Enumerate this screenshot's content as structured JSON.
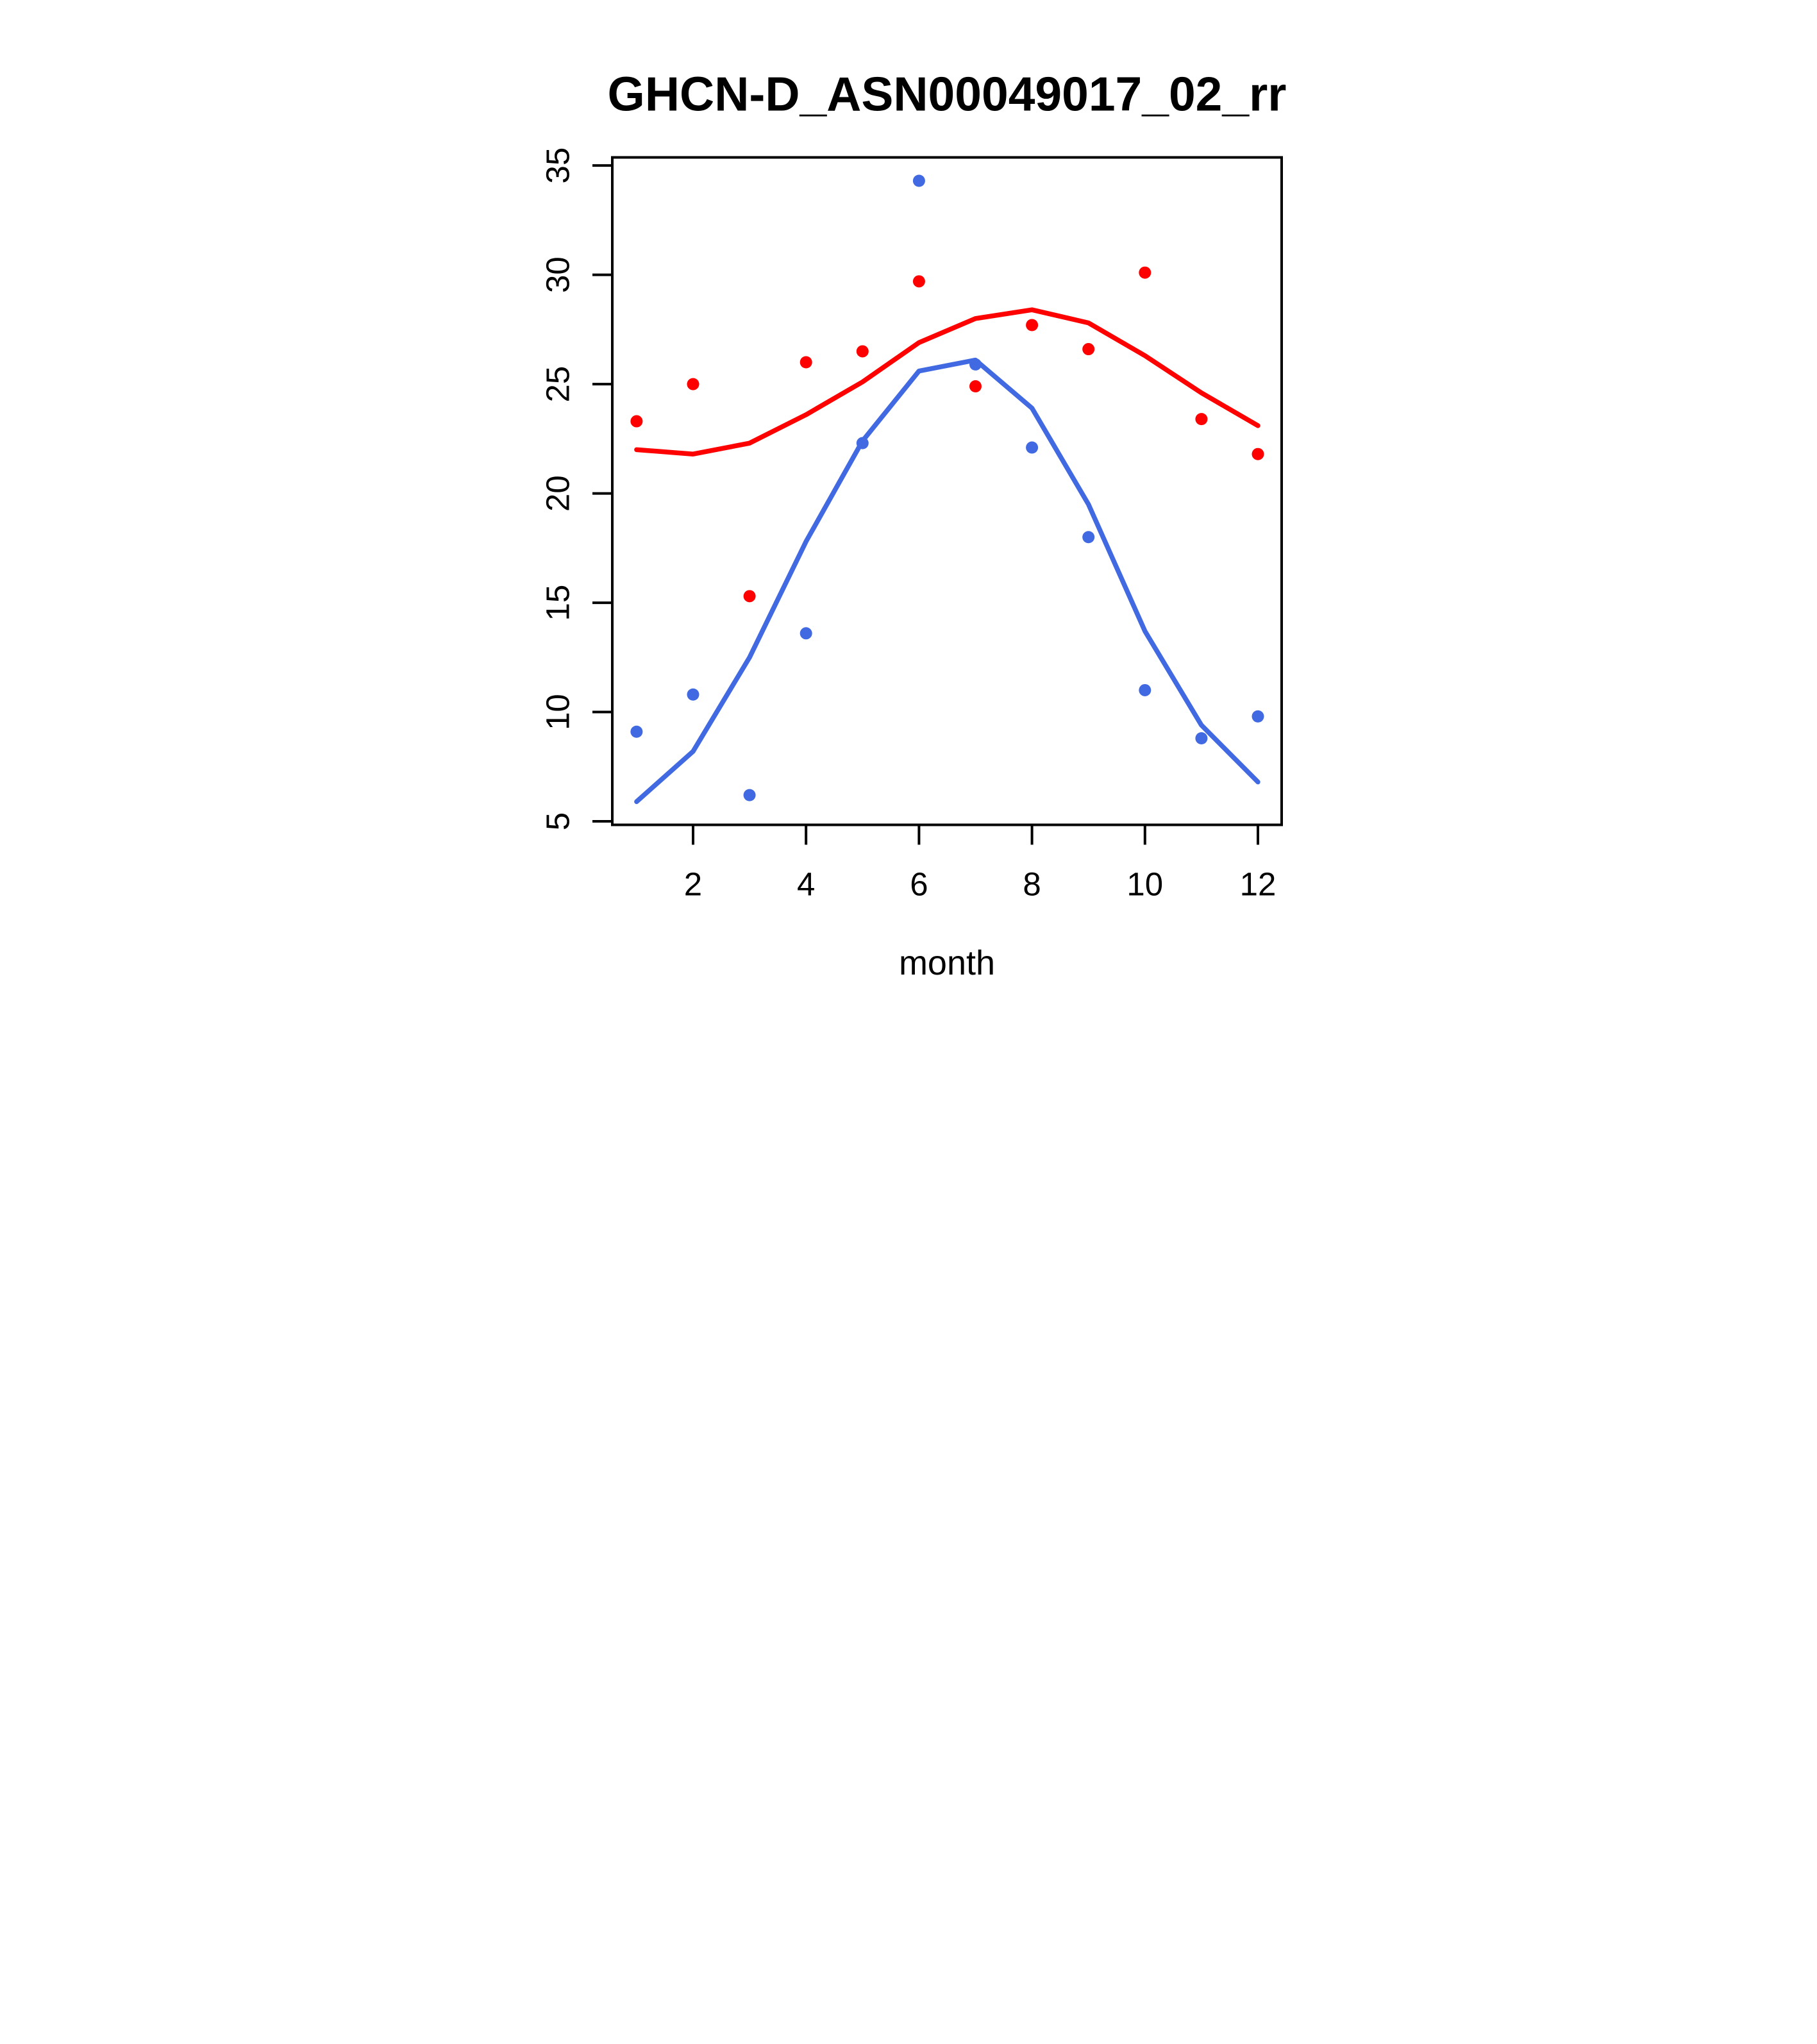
{
  "title": "GHCN-D_ASN00049017_02_rr",
  "chart_data": {
    "type": "scatter",
    "title": "GHCN-D_ASN00049017_02_rr",
    "xlabel": "month",
    "ylabel": "",
    "x": [
      1,
      2,
      3,
      4,
      5,
      6,
      7,
      8,
      9,
      10,
      11,
      12
    ],
    "x_ticks": [
      2,
      4,
      6,
      8,
      10,
      12
    ],
    "y_ticks": [
      5,
      10,
      15,
      20,
      25,
      30,
      35
    ],
    "xlim": [
      0.57,
      12.42
    ],
    "ylim": [
      4.84,
      35.37
    ],
    "grid": "off",
    "legend": "none",
    "colors": {
      "red": "#FF0000",
      "blue": "#4169E1",
      "axis": "#000000"
    },
    "series": [
      {
        "name": "red-points",
        "kind": "points",
        "color": "#FF0000",
        "values": [
          23.3,
          25.0,
          15.3,
          26.0,
          26.5,
          29.7,
          24.9,
          27.7,
          26.6,
          30.1,
          23.4,
          21.8
        ]
      },
      {
        "name": "blue-points",
        "kind": "points",
        "color": "#4169E1",
        "values": [
          9.1,
          10.8,
          6.2,
          13.6,
          22.3,
          34.3,
          25.9,
          22.1,
          18.0,
          11.0,
          8.8,
          9.8
        ]
      },
      {
        "name": "red-smooth-line",
        "kind": "line",
        "color": "#FF0000",
        "values": [
          22.0,
          21.8,
          22.3,
          23.6,
          25.1,
          26.9,
          28.0,
          28.4,
          27.8,
          26.3,
          24.6,
          23.1
        ]
      },
      {
        "name": "blue-smooth-line",
        "kind": "line",
        "color": "#4169E1",
        "values": [
          5.9,
          8.2,
          12.5,
          17.8,
          22.4,
          25.6,
          26.1,
          23.9,
          19.5,
          13.7,
          9.4,
          6.8
        ]
      }
    ]
  }
}
